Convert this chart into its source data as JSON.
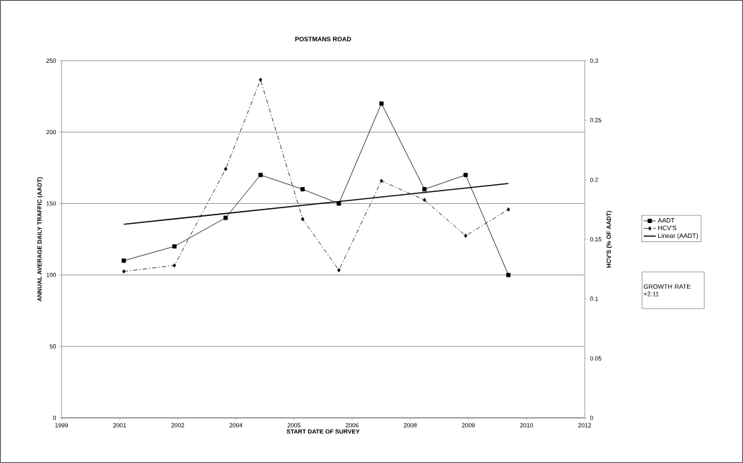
{
  "chart_data": {
    "type": "line",
    "title": "POSTMANS ROAD",
    "xlabel": "START DATE OF SURVEY",
    "ylabel": "ANNUAL AVERAGE DAILY TRAFFIC (AADT)",
    "y2label": "HCV'S (% OF AADT)",
    "x": [
      "2001-06-01",
      "2002-08-10",
      "2003-10-25",
      "2004-08-20",
      "2005-08-17",
      "2006-06-25",
      "2007-06-26",
      "2008-06-30",
      "2009-06-19",
      "2010-06-22"
    ],
    "xlim": [
      "1999-12-13",
      "2012-04-08"
    ],
    "xticks": [
      {
        "value": "1999-12-13",
        "label": "1999"
      },
      {
        "value": "2001-04-26",
        "label": "2001"
      },
      {
        "value": "2002-09-08",
        "label": "2002"
      },
      {
        "value": "2004-01-21",
        "label": "2004"
      },
      {
        "value": "2005-06-04",
        "label": "2005"
      },
      {
        "value": "2006-10-17",
        "label": "2006"
      },
      {
        "value": "2008-02-29",
        "label": "2008"
      },
      {
        "value": "2009-07-13",
        "label": "2009"
      },
      {
        "value": "2010-11-25",
        "label": "2010"
      },
      {
        "value": "2012-04-08",
        "label": "2012"
      }
    ],
    "ylim": [
      0,
      250
    ],
    "yticks": [
      0,
      50,
      100,
      150,
      200,
      250
    ],
    "y2lim": [
      0,
      0.3
    ],
    "y2ticks": [
      0,
      0.05,
      0.1,
      0.15,
      0.2,
      0.25,
      0.3
    ],
    "grid": "y",
    "legend": "right",
    "series": [
      {
        "name": "AADT",
        "color": "#000000",
        "marker": "square",
        "line_style": "solid",
        "values": [
          110,
          120,
          140,
          170,
          160,
          150,
          220,
          160,
          170,
          100
        ]
      },
      {
        "name": "HCV'S",
        "color": "#000000",
        "marker": "diamond",
        "line_style": "dashed",
        "axis": "y2",
        "values": [
          0.123,
          0.128,
          0.209,
          0.284,
          0.167,
          0.124,
          0.199,
          0.183,
          0.153,
          0.175
        ]
      },
      {
        "name": "Linear (AADT)",
        "color": "#000000",
        "marker": "none",
        "line_style": "solid",
        "x": [
          "2001-06-01",
          "2010-06-22"
        ],
        "values": [
          135.5,
          164.0
        ]
      }
    ],
    "annotations": [
      "GROWTH RATE +2.11"
    ]
  }
}
